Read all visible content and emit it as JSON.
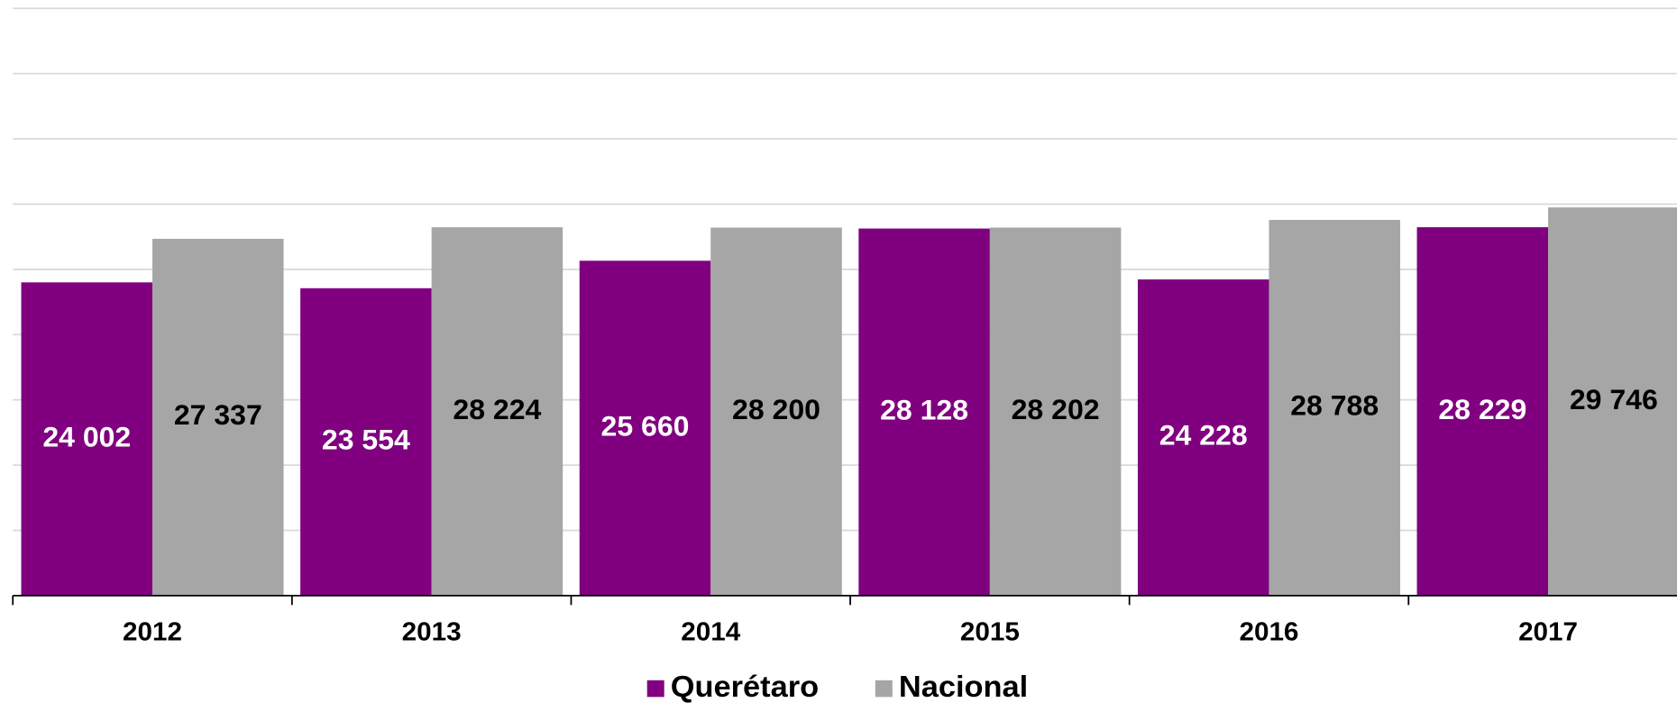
{
  "chart_data": {
    "type": "bar",
    "categories": [
      "2012",
      "2013",
      "2014",
      "2015",
      "2016",
      "2017"
    ],
    "series": [
      {
        "name": "Querétaro",
        "color": "#800080",
        "values": [
          24002,
          23554,
          25660,
          28128,
          24228,
          28229
        ],
        "value_labels": [
          "24 002",
          "23 554",
          "25 660",
          "28 128",
          "24 228",
          "28 229"
        ],
        "label_color": "#ffffff"
      },
      {
        "name": "Nacional",
        "color": "#a6a6a6",
        "values": [
          27337,
          28224,
          28200,
          28202,
          28788,
          29746
        ],
        "value_labels": [
          "27 337",
          "28 224",
          "28 200",
          "28 202",
          "28 788",
          "29 746"
        ],
        "label_color": "#000000"
      }
    ],
    "ylim": [
      0,
      45000
    ],
    "yticks": [
      0,
      5000,
      10000,
      15000,
      20000,
      25000,
      30000,
      35000,
      40000,
      45000
    ],
    "show_ytick_labels": false,
    "grid": true,
    "legend": "bottom"
  }
}
